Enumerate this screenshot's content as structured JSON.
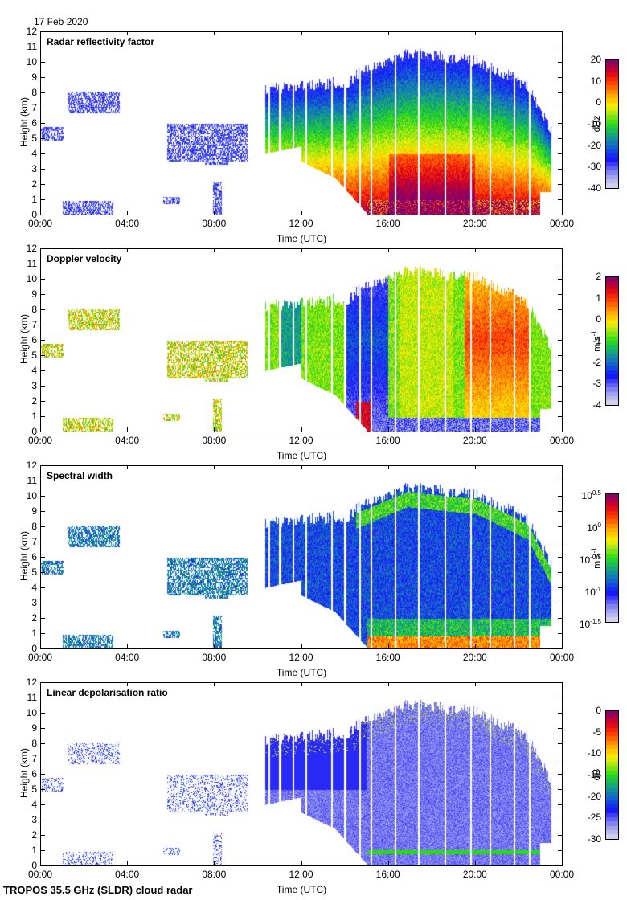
{
  "date_label": "17 Feb 2020",
  "footer_label": "TROPOS 35.5 GHz (SLDR) cloud radar",
  "chart_data": [
    {
      "type": "heatmap",
      "title": "Radar reflectivity factor",
      "xlabel": "Time (UTC)",
      "ylabel": "Height (km)",
      "x_ticks": [
        "00:00",
        "04:00",
        "08:00",
        "12:00",
        "16:00",
        "20:00",
        "00:00"
      ],
      "x_range_hours": [
        0,
        24
      ],
      "y_ticks": [
        "0",
        "1",
        "2",
        "3",
        "4",
        "5",
        "6",
        "7",
        "8",
        "9",
        "10",
        "11",
        "12"
      ],
      "y_range_km": [
        0,
        12
      ],
      "colorbar": {
        "label": "dBz",
        "range": [
          -40,
          20
        ],
        "ticks": [
          "20",
          "10",
          "0",
          "-10",
          "-20",
          "-30",
          "-40"
        ]
      },
      "features": "Thin upper cloud 01:00-03:30 at 7-8 km; mid-level patches 5-6 km near 00:00 and 06:00-09:00; deep precipitating system 10:30-23:30 up to ~10.8 km with strongest reflectivity (>10 dBz) below 4 km between 16:00 and 20:00"
    },
    {
      "type": "heatmap",
      "title": "Doppler velocity",
      "xlabel": "Time (UTC)",
      "ylabel": "Height (km)",
      "x_ticks": [
        "00:00",
        "04:00",
        "08:00",
        "12:00",
        "16:00",
        "20:00",
        "00:00"
      ],
      "x_range_hours": [
        0,
        24
      ],
      "y_ticks": [
        "0",
        "1",
        "2",
        "3",
        "4",
        "5",
        "6",
        "7",
        "8",
        "9",
        "10",
        "11",
        "12"
      ],
      "y_range_km": [
        0,
        12
      ],
      "colorbar": {
        "label": "m s-1",
        "label_main": "m s",
        "label_sup": "-1",
        "range": [
          -4,
          2
        ],
        "ticks": [
          "2",
          "1",
          "0",
          "-1",
          "-2",
          "-3",
          "-4"
        ]
      },
      "features": "Mostly -2 to 0 m/s within the main system; strongest downward motion (-3 m/s) near 15:00 at 6 km; positive values (~1 m/s) 20:00-22:00 at 4-8 km; saturated -4 m/s below 1 km after 16:00"
    },
    {
      "type": "heatmap",
      "title": "Spectral width",
      "xlabel": "Time (UTC)",
      "ylabel": "Height (km)",
      "x_ticks": [
        "00:00",
        "04:00",
        "08:00",
        "12:00",
        "16:00",
        "20:00",
        "00:00"
      ],
      "x_range_hours": [
        0,
        24
      ],
      "y_ticks": [
        "0",
        "1",
        "2",
        "3",
        "4",
        "5",
        "6",
        "7",
        "8",
        "9",
        "10",
        "11",
        "12"
      ],
      "y_range_km": [
        0,
        12
      ],
      "colorbar": {
        "label": "m s-1",
        "label_main": "m s",
        "label_sup": "-1",
        "scale": "log10",
        "range": [
          -1.5,
          0.5
        ],
        "ticks": [
          {
            "base": "10",
            "exp": "0.5"
          },
          {
            "base": "10",
            "exp": "0"
          },
          {
            "base": "10",
            "exp": "-0.5"
          },
          {
            "base": "10",
            "exp": "-1"
          },
          {
            "base": "10",
            "exp": "-1.5"
          }
        ]
      },
      "features": "Mostly ~10^-1 m/s within cloud; enhanced near cloud top (~10 km) and below 2 km; largest widths (~10^0 m/s) below 0.8 km after 15:00"
    },
    {
      "type": "heatmap",
      "title": "Linear depolarisation ratio",
      "xlabel": "Time (UTC)",
      "ylabel": "Height (km)",
      "x_ticks": [
        "00:00",
        "04:00",
        "08:00",
        "12:00",
        "16:00",
        "20:00",
        "00:00"
      ],
      "x_range_hours": [
        0,
        24
      ],
      "y_ticks": [
        "0",
        "1",
        "2",
        "3",
        "4",
        "5",
        "6",
        "7",
        "8",
        "9",
        "10",
        "11",
        "12"
      ],
      "y_range_km": [
        0,
        12
      ],
      "colorbar": {
        "label": "dB",
        "range": [
          -30,
          0
        ],
        "ticks": [
          "0",
          "-5",
          "-10",
          "-15",
          "-20",
          "-25",
          "-30"
        ]
      },
      "features": "Low LDR (-25 to -30 dB) throughout main system 10:30-23:30; melting layer bright band (~-15 dB) at ~0.9 km from 15:00 to 23:00; scattered higher values near cloud top"
    }
  ]
}
